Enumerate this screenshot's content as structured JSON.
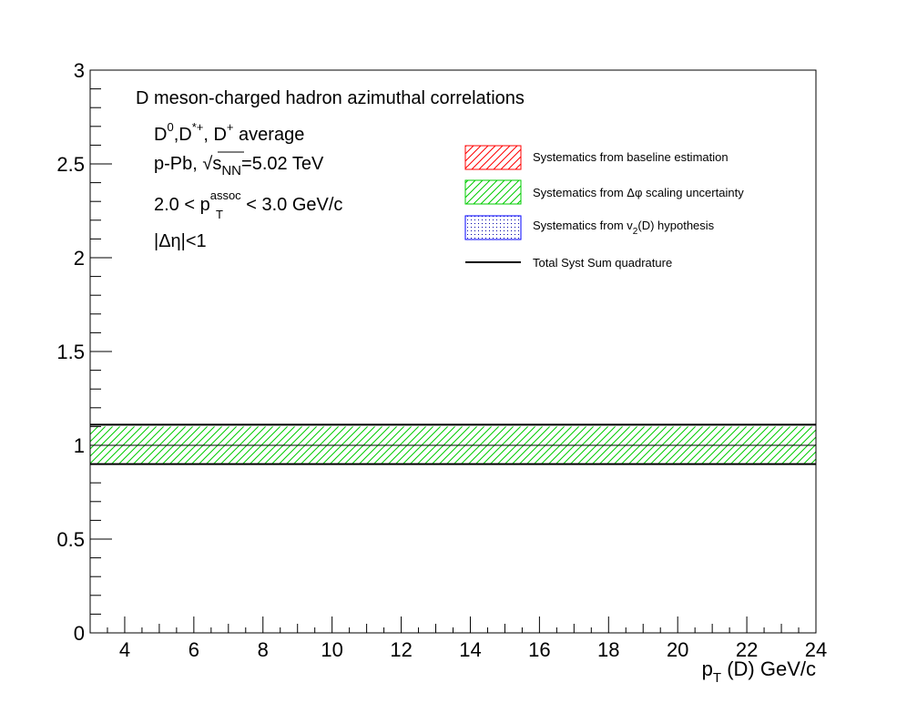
{
  "chart_data": {
    "type": "area",
    "xlabel_main": "p",
    "xlabel_sub": "T",
    "xlabel_rest": " (D) GeV/c",
    "xlim": [
      3,
      24
    ],
    "ylim": [
      0,
      3
    ],
    "x_ticks": [
      4,
      6,
      8,
      10,
      12,
      14,
      16,
      18,
      20,
      22,
      24
    ],
    "y_ticks": [
      0,
      0.5,
      1,
      1.5,
      2,
      2.5,
      3
    ],
    "y_tick_labels": [
      "0",
      "0.5",
      "1",
      "1.5",
      "2",
      "2.5",
      "3"
    ],
    "grid": false,
    "legend_position": "top-right",
    "annotations": {
      "title": "D meson-charged hadron azimuthal correlations",
      "species": {
        "d0": "D",
        "d0_sup": "0",
        "comma1": ",D",
        "dstar_sup": "*+",
        "comma2": ", D",
        "dplus_sup": "+",
        "rest": " average"
      },
      "system": {
        "prefix": "p-Pb, ",
        "sqrt": "√",
        "s": "s",
        "s_sub": "NN",
        "energy": "=5.02 TeV"
      },
      "assoc": {
        "prefix": "2.0 < p",
        "sup": "assoc",
        "sub": "T",
        "suffix": " < 3.0 GeV/c"
      },
      "eta": "|Δη|<1"
    },
    "legend": [
      {
        "key": "baseline",
        "label": "Systematics from baseline estimation",
        "color": "#ff0000",
        "pattern": "hatch-red"
      },
      {
        "key": "scaling",
        "label": "Systematics from Δφ scaling uncertainty",
        "color": "#00cc00",
        "pattern": "hatch-green"
      },
      {
        "key": "v2",
        "label_prefix": "Systematics from v",
        "label_sub": "2",
        "label_suffix": "(D) hypothesis",
        "color": "#0000ff",
        "pattern": "dots-blue"
      },
      {
        "key": "total",
        "label": "Total Syst Sum quadrature",
        "color": "#000000",
        "pattern": "line"
      }
    ],
    "series": [
      {
        "key": "scaling",
        "x": [
          3,
          24
        ],
        "y_low": [
          0.9,
          0.9
        ],
        "y_high": [
          1.1,
          1.1
        ]
      },
      {
        "key": "total",
        "x": [
          3,
          24
        ],
        "y_low": [
          0.9,
          0.9
        ],
        "y_high": [
          1.11,
          1.11
        ]
      },
      {
        "key": "reference",
        "x": [
          3,
          24
        ],
        "y": [
          1.0,
          1.0
        ]
      }
    ]
  }
}
